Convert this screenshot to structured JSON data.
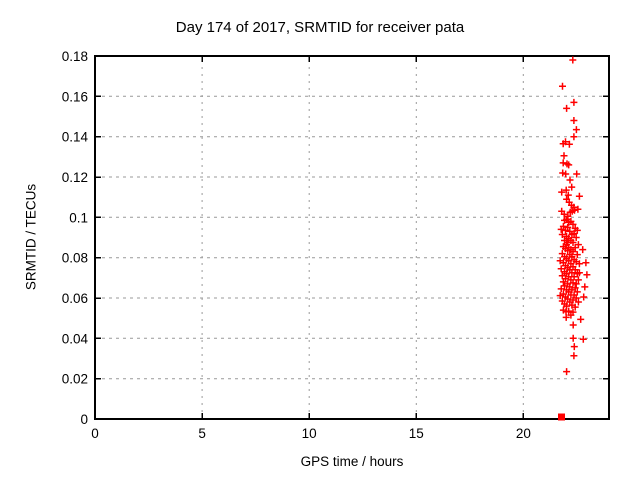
{
  "window": {
    "background_color": "#ffffff",
    "text_color": "#000000",
    "border_color": "#000000"
  },
  "chart_data": {
    "type": "scatter",
    "title": "Day 174 of 2017, SRMTID for receiver pata",
    "xlabel": "GPS time / hours",
    "ylabel": "SRMTID / TECUs",
    "xlim": [
      0,
      24
    ],
    "ylim": [
      0,
      0.18
    ],
    "xticks": [
      0,
      5,
      10,
      15,
      20
    ],
    "xtick_labels": [
      "0",
      "5",
      "10",
      "15",
      "20"
    ],
    "yticks": [
      0,
      0.02,
      0.04,
      0.06,
      0.08,
      0.1,
      0.12,
      0.14,
      0.16,
      0.18
    ],
    "ytick_labels": [
      "0",
      "0.02",
      "0.04",
      "0.06",
      "0.08",
      "0.1",
      "0.12",
      "0.14",
      "0.16",
      "0.18"
    ],
    "grid": true,
    "grid_color": "#999999",
    "legend": "none",
    "series": [
      {
        "name": "SRMTID",
        "marker": "plus",
        "color": "#ff0000",
        "points": [
          [
            22.31,
            0.178
          ],
          [
            21.83,
            0.165
          ],
          [
            22.36,
            0.157
          ],
          [
            22.02,
            0.154
          ],
          [
            22.36,
            0.148
          ],
          [
            22.48,
            0.1435
          ],
          [
            22.36,
            0.14
          ],
          [
            21.97,
            0.1375
          ],
          [
            21.86,
            0.1365
          ],
          [
            22.15,
            0.1362
          ],
          [
            21.9,
            0.1305
          ],
          [
            21.86,
            0.127
          ],
          [
            22.04,
            0.1265
          ],
          [
            22.12,
            0.126
          ],
          [
            21.84,
            0.122
          ],
          [
            21.98,
            0.1215
          ],
          [
            22.49,
            0.1215
          ],
          [
            22.18,
            0.1185
          ],
          [
            22.26,
            0.115
          ],
          [
            22.0,
            0.1135
          ],
          [
            21.79,
            0.1125
          ],
          [
            22.1,
            0.111
          ],
          [
            22.62,
            0.1105
          ],
          [
            22.02,
            0.109
          ],
          [
            22.14,
            0.1075
          ],
          [
            22.25,
            0.106
          ],
          [
            22.36,
            0.105
          ],
          [
            22.55,
            0.104
          ],
          [
            21.79,
            0.103
          ],
          [
            22.19,
            0.1025
          ],
          [
            22.28,
            0.103
          ],
          [
            22.39,
            0.1035
          ],
          [
            21.91,
            0.1015
          ],
          [
            22.08,
            0.1005
          ],
          [
            21.92,
            0.0985
          ],
          [
            22.02,
            0.099
          ],
          [
            22.12,
            0.0975
          ],
          [
            22.22,
            0.098
          ],
          [
            22.32,
            0.0965
          ],
          [
            21.87,
            0.0955
          ],
          [
            22.07,
            0.095
          ],
          [
            22.42,
            0.0945
          ],
          [
            21.97,
            0.0935
          ],
          [
            22.17,
            0.093
          ],
          [
            22.52,
            0.0935
          ],
          [
            21.77,
            0.094
          ],
          [
            21.82,
            0.0915
          ],
          [
            22.27,
            0.0915
          ],
          [
            22.37,
            0.092
          ],
          [
            22.02,
            0.0905
          ],
          [
            22.12,
            0.0895
          ],
          [
            22.47,
            0.09
          ],
          [
            21.92,
            0.0885
          ],
          [
            22.22,
            0.0885
          ],
          [
            22.32,
            0.0875
          ],
          [
            22.07,
            0.0875
          ],
          [
            22.02,
            0.0865
          ],
          [
            22.57,
            0.0865
          ],
          [
            21.87,
            0.0855
          ],
          [
            22.42,
            0.085
          ],
          [
            22.12,
            0.085
          ],
          [
            21.97,
            0.0845
          ],
          [
            22.22,
            0.084
          ],
          [
            22.77,
            0.084
          ],
          [
            22.07,
            0.0835
          ],
          [
            22.32,
            0.083
          ],
          [
            21.82,
            0.082
          ],
          [
            22.17,
            0.0815
          ],
          [
            22.52,
            0.0815
          ],
          [
            21.92,
            0.0805
          ],
          [
            22.27,
            0.0805
          ],
          [
            22.02,
            0.0795
          ],
          [
            22.37,
            0.079
          ],
          [
            21.72,
            0.0785
          ],
          [
            22.12,
            0.0785
          ],
          [
            22.92,
            0.0775
          ],
          [
            22.47,
            0.078
          ],
          [
            21.87,
            0.0775
          ],
          [
            22.22,
            0.077
          ],
          [
            22.62,
            0.077
          ],
          [
            21.97,
            0.076
          ],
          [
            22.32,
            0.0755
          ],
          [
            22.07,
            0.075
          ],
          [
            21.77,
            0.0745
          ],
          [
            22.17,
            0.074
          ],
          [
            22.42,
            0.074
          ],
          [
            21.92,
            0.073
          ],
          [
            22.27,
            0.0725
          ],
          [
            22.62,
            0.0725
          ],
          [
            22.02,
            0.072
          ],
          [
            22.52,
            0.072
          ],
          [
            22.97,
            0.0715
          ],
          [
            21.82,
            0.071
          ],
          [
            22.12,
            0.0705
          ],
          [
            22.37,
            0.0705
          ],
          [
            21.97,
            0.0695
          ],
          [
            22.22,
            0.069
          ],
          [
            22.57,
            0.069
          ],
          [
            21.87,
            0.068
          ],
          [
            22.32,
            0.0675
          ],
          [
            22.07,
            0.067
          ],
          [
            22.47,
            0.067
          ],
          [
            21.92,
            0.066
          ],
          [
            22.87,
            0.0655
          ],
          [
            22.17,
            0.0655
          ],
          [
            22.42,
            0.065
          ],
          [
            21.77,
            0.0645
          ],
          [
            22.02,
            0.064
          ],
          [
            22.27,
            0.064
          ],
          [
            22.12,
            0.063
          ],
          [
            22.52,
            0.063
          ],
          [
            21.87,
            0.062
          ],
          [
            22.22,
            0.0615
          ],
          [
            22.37,
            0.0615
          ],
          [
            21.72,
            0.0612
          ],
          [
            21.97,
            0.0605
          ],
          [
            22.82,
            0.0605
          ],
          [
            22.47,
            0.06
          ],
          [
            22.07,
            0.0595
          ],
          [
            22.32,
            0.059
          ],
          [
            21.82,
            0.0585
          ],
          [
            22.17,
            0.058
          ],
          [
            22.57,
            0.058
          ],
          [
            21.92,
            0.057
          ],
          [
            22.27,
            0.0565
          ],
          [
            22.02,
            0.056
          ],
          [
            22.42,
            0.0555
          ],
          [
            21.87,
            0.054
          ],
          [
            22.12,
            0.0535
          ],
          [
            21.99,
            0.0532
          ],
          [
            22.32,
            0.053
          ],
          [
            22.22,
            0.0515
          ],
          [
            22.0,
            0.0504
          ],
          [
            22.68,
            0.0494
          ],
          [
            22.33,
            0.0466
          ],
          [
            22.33,
            0.04
          ],
          [
            22.8,
            0.0395
          ],
          [
            22.38,
            0.0359
          ],
          [
            22.36,
            0.0314
          ],
          [
            22.02,
            0.0235
          ]
        ]
      }
    ],
    "zero_markers": {
      "marker": "filled-square",
      "color": "#ff0000",
      "points": [
        [
          21.78,
          0.0
        ]
      ]
    }
  }
}
